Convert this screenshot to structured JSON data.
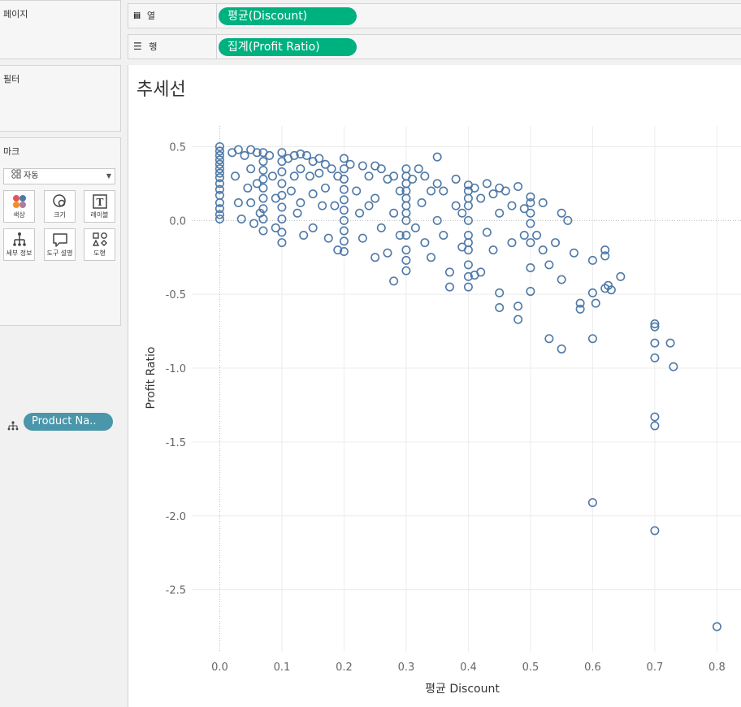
{
  "pages_panel": {
    "title": "페이지"
  },
  "filters_panel": {
    "title": "필터"
  },
  "marks_panel": {
    "title": "마크",
    "mark_type": "자동",
    "buttons": [
      {
        "label": "색상",
        "icon": "color-icon"
      },
      {
        "label": "크기",
        "icon": "size-icon"
      },
      {
        "label": "레이블",
        "icon": "label-icon"
      },
      {
        "label": "세부 정보",
        "icon": "detail-icon"
      },
      {
        "label": "도구 설명",
        "icon": "tooltip-icon"
      },
      {
        "label": "도형",
        "icon": "shape-icon"
      }
    ],
    "detail_field": "Product Na.."
  },
  "shelves": {
    "columns_label": "열",
    "columns_pill": "평균(Discount)",
    "rows_label": "행",
    "rows_pill": "집계(Profit Ratio)"
  },
  "colors": {
    "pill_green": "#00b180",
    "pill_teal": "#4a96ab",
    "marks": "#4e79a7"
  },
  "chart_data": {
    "type": "scatter",
    "title": "추세선",
    "xlabel": "평균 Discount",
    "ylabel": "Profit Ratio",
    "xlim": [
      -0.045,
      0.84
    ],
    "ylim": [
      -2.92,
      0.64
    ],
    "x_ticks": [
      "0.0",
      "0.1",
      "0.2",
      "0.3",
      "0.4",
      "0.5",
      "0.6",
      "0.7",
      "0.8"
    ],
    "y_ticks": [
      "0.5",
      "0.0",
      "-0.5",
      "-1.0",
      "-1.5",
      "-2.0",
      "-2.5"
    ],
    "marker": "hollow-circle",
    "gridlines": true,
    "points": [
      [
        0,
        0.5
      ],
      [
        0,
        0.47
      ],
      [
        0,
        0.44
      ],
      [
        0,
        0.41
      ],
      [
        0,
        0.38
      ],
      [
        0,
        0.35
      ],
      [
        0,
        0.32
      ],
      [
        0,
        0.29
      ],
      [
        0,
        0.25
      ],
      [
        0,
        0.21
      ],
      [
        0,
        0.17
      ],
      [
        0,
        0.12
      ],
      [
        0,
        0.08
      ],
      [
        0,
        0.04
      ],
      [
        0,
        0.01
      ],
      [
        0.02,
        0.46
      ],
      [
        0.025,
        0.3
      ],
      [
        0.03,
        0.48
      ],
      [
        0.03,
        0.12
      ],
      [
        0.035,
        0.01
      ],
      [
        0.04,
        0.44
      ],
      [
        0.045,
        0.22
      ],
      [
        0.05,
        0.48
      ],
      [
        0.05,
        0.35
      ],
      [
        0.05,
        0.12
      ],
      [
        0.055,
        -0.02
      ],
      [
        0.06,
        0.46
      ],
      [
        0.06,
        0.25
      ],
      [
        0.065,
        0.05
      ],
      [
        0.07,
        0.46
      ],
      [
        0.07,
        0.4
      ],
      [
        0.07,
        0.34
      ],
      [
        0.07,
        0.28
      ],
      [
        0.07,
        0.22
      ],
      [
        0.07,
        0.15
      ],
      [
        0.07,
        0.08
      ],
      [
        0.07,
        0.01
      ],
      [
        0.07,
        -0.07
      ],
      [
        0.08,
        0.44
      ],
      [
        0.085,
        0.3
      ],
      [
        0.09,
        0.15
      ],
      [
        0.09,
        -0.05
      ],
      [
        0.1,
        0.46
      ],
      [
        0.1,
        0.4
      ],
      [
        0.1,
        0.33
      ],
      [
        0.1,
        0.25
      ],
      [
        0.1,
        0.17
      ],
      [
        0.1,
        0.09
      ],
      [
        0.1,
        0.01
      ],
      [
        0.1,
        -0.08
      ],
      [
        0.1,
        -0.15
      ],
      [
        0.11,
        0.42
      ],
      [
        0.115,
        0.2
      ],
      [
        0.12,
        0.44
      ],
      [
        0.12,
        0.3
      ],
      [
        0.125,
        0.05
      ],
      [
        0.13,
        0.45
      ],
      [
        0.13,
        0.35
      ],
      [
        0.13,
        0.12
      ],
      [
        0.135,
        -0.1
      ],
      [
        0.14,
        0.44
      ],
      [
        0.145,
        0.3
      ],
      [
        0.15,
        0.4
      ],
      [
        0.15,
        0.18
      ],
      [
        0.15,
        -0.05
      ],
      [
        0.16,
        0.42
      ],
      [
        0.16,
        0.32
      ],
      [
        0.165,
        0.1
      ],
      [
        0.17,
        0.38
      ],
      [
        0.17,
        0.22
      ],
      [
        0.175,
        -0.12
      ],
      [
        0.18,
        0.35
      ],
      [
        0.185,
        0.1
      ],
      [
        0.19,
        -0.2
      ],
      [
        0.19,
        0.3
      ],
      [
        0.2,
        0.42
      ],
      [
        0.2,
        0.35
      ],
      [
        0.2,
        0.28
      ],
      [
        0.2,
        0.21
      ],
      [
        0.2,
        0.14
      ],
      [
        0.2,
        0.07
      ],
      [
        0.2,
        0
      ],
      [
        0.2,
        -0.07
      ],
      [
        0.2,
        -0.14
      ],
      [
        0.2,
        -0.21
      ],
      [
        0.21,
        0.38
      ],
      [
        0.22,
        0.2
      ],
      [
        0.225,
        0.05
      ],
      [
        0.23,
        0.37
      ],
      [
        0.23,
        -0.12
      ],
      [
        0.24,
        0.3
      ],
      [
        0.24,
        0.1
      ],
      [
        0.25,
        0.37
      ],
      [
        0.25,
        0.15
      ],
      [
        0.25,
        -0.25
      ],
      [
        0.26,
        0.35
      ],
      [
        0.26,
        -0.05
      ],
      [
        0.27,
        0.28
      ],
      [
        0.27,
        -0.22
      ],
      [
        0.28,
        0.3
      ],
      [
        0.28,
        0.05
      ],
      [
        0.28,
        -0.41
      ],
      [
        0.29,
        0.2
      ],
      [
        0.29,
        -0.1
      ],
      [
        0.3,
        0.35
      ],
      [
        0.3,
        0.3
      ],
      [
        0.3,
        0.25
      ],
      [
        0.3,
        0.2
      ],
      [
        0.3,
        0.15
      ],
      [
        0.3,
        0.1
      ],
      [
        0.3,
        0.05
      ],
      [
        0.3,
        0
      ],
      [
        0.3,
        -0.1
      ],
      [
        0.3,
        -0.2
      ],
      [
        0.3,
        -0.27
      ],
      [
        0.3,
        -0.34
      ],
      [
        0.31,
        0.28
      ],
      [
        0.315,
        -0.05
      ],
      [
        0.32,
        0.35
      ],
      [
        0.325,
        0.12
      ],
      [
        0.33,
        -0.15
      ],
      [
        0.33,
        0.3
      ],
      [
        0.34,
        0.2
      ],
      [
        0.34,
        -0.25
      ],
      [
        0.35,
        0.43
      ],
      [
        0.35,
        0.25
      ],
      [
        0.35,
        0
      ],
      [
        0.36,
        0.2
      ],
      [
        0.36,
        -0.1
      ],
      [
        0.37,
        -0.35
      ],
      [
        0.37,
        -0.45
      ],
      [
        0.38,
        0.28
      ],
      [
        0.38,
        0.1
      ],
      [
        0.39,
        0.05
      ],
      [
        0.39,
        -0.18
      ],
      [
        0.4,
        0.24
      ],
      [
        0.4,
        0.2
      ],
      [
        0.4,
        0.15
      ],
      [
        0.4,
        0.1
      ],
      [
        0.4,
        0
      ],
      [
        0.4,
        -0.1
      ],
      [
        0.4,
        -0.15
      ],
      [
        0.4,
        -0.2
      ],
      [
        0.4,
        -0.3
      ],
      [
        0.4,
        -0.38
      ],
      [
        0.4,
        -0.45
      ],
      [
        0.41,
        0.22
      ],
      [
        0.41,
        -0.37
      ],
      [
        0.42,
        0.15
      ],
      [
        0.42,
        -0.35
      ],
      [
        0.43,
        0.25
      ],
      [
        0.43,
        -0.08
      ],
      [
        0.44,
        0.18
      ],
      [
        0.44,
        -0.2
      ],
      [
        0.45,
        0.22
      ],
      [
        0.45,
        0.05
      ],
      [
        0.45,
        -0.49
      ],
      [
        0.45,
        -0.59
      ],
      [
        0.46,
        0.2
      ],
      [
        0.47,
        0.1
      ],
      [
        0.47,
        -0.15
      ],
      [
        0.48,
        0.23
      ],
      [
        0.48,
        -0.58
      ],
      [
        0.48,
        -0.67
      ],
      [
        0.49,
        0.08
      ],
      [
        0.49,
        -0.1
      ],
      [
        0.5,
        0.16
      ],
      [
        0.5,
        0.12
      ],
      [
        0.5,
        0.05
      ],
      [
        0.5,
        -0.02
      ],
      [
        0.5,
        -0.15
      ],
      [
        0.5,
        -0.32
      ],
      [
        0.5,
        -0.48
      ],
      [
        0.51,
        -0.1
      ],
      [
        0.52,
        0.12
      ],
      [
        0.52,
        -0.2
      ],
      [
        0.53,
        -0.3
      ],
      [
        0.53,
        -0.8
      ],
      [
        0.54,
        -0.15
      ],
      [
        0.55,
        0.05
      ],
      [
        0.55,
        -0.4
      ],
      [
        0.55,
        -0.87
      ],
      [
        0.56,
        0
      ],
      [
        0.57,
        -0.22
      ],
      [
        0.58,
        -0.56
      ],
      [
        0.58,
        -0.6
      ],
      [
        0.6,
        -0.27
      ],
      [
        0.6,
        -0.49
      ],
      [
        0.6,
        -0.8
      ],
      [
        0.6,
        -1.91
      ],
      [
        0.605,
        -0.56
      ],
      [
        0.62,
        -0.2
      ],
      [
        0.62,
        -0.24
      ],
      [
        0.62,
        -0.46
      ],
      [
        0.625,
        -0.44
      ],
      [
        0.63,
        -0.47
      ],
      [
        0.645,
        -0.38
      ],
      [
        0.7,
        -0.7
      ],
      [
        0.7,
        -0.72
      ],
      [
        0.7,
        -0.83
      ],
      [
        0.7,
        -0.93
      ],
      [
        0.7,
        -1.33
      ],
      [
        0.7,
        -1.39
      ],
      [
        0.7,
        -2.1
      ],
      [
        0.725,
        -0.83
      ],
      [
        0.73,
        -0.99
      ],
      [
        0.8,
        -2.75
      ]
    ]
  }
}
